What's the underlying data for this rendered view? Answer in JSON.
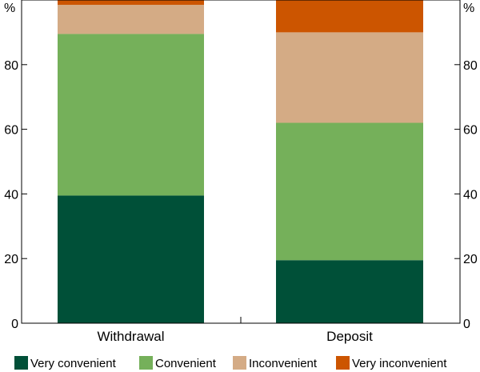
{
  "chart_data": {
    "type": "bar",
    "stacked": true,
    "categories": [
      "Withdrawal",
      "Deposit"
    ],
    "series": [
      {
        "name": "Very convenient",
        "color": "#005038",
        "values": [
          39.5,
          19.5
        ]
      },
      {
        "name": "Convenient",
        "color": "#75b05a",
        "values": [
          50.0,
          42.5
        ]
      },
      {
        "name": "Inconvenient",
        "color": "#d4ab85",
        "values": [
          9.0,
          28.0
        ]
      },
      {
        "name": "Very inconvenient",
        "color": "#cc5500",
        "values": [
          1.5,
          10.0
        ]
      }
    ],
    "ylabel": "%",
    "ylim": [
      0,
      100
    ],
    "yticks": [
      0,
      20,
      40,
      60,
      80
    ],
    "legend_position": "bottom",
    "grid": false
  }
}
